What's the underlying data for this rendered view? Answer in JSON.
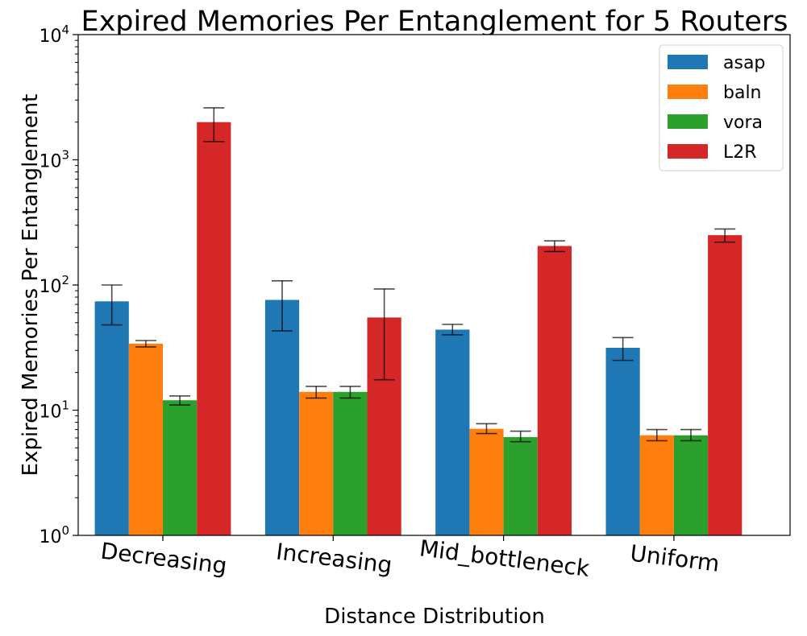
{
  "chart_data": {
    "type": "bar",
    "title": "Expired Memories Per Entanglement for 5 Routers",
    "xlabel": "Distance Distribution",
    "ylabel": "Expired Memories Per Entanglement",
    "yscale": "log",
    "ylim": [
      1,
      10000
    ],
    "yticks": [
      {
        "value": 1,
        "base": "10",
        "exp": "0"
      },
      {
        "value": 10,
        "base": "10",
        "exp": "1"
      },
      {
        "value": 100,
        "base": "10",
        "exp": "2"
      },
      {
        "value": 1000,
        "base": "10",
        "exp": "3"
      },
      {
        "value": 10000,
        "base": "10",
        "exp": "4"
      }
    ],
    "categories": [
      "Decreasing",
      "Increasing",
      "Mid_bottleneck",
      "Uniform"
    ],
    "legend_position": "top-right",
    "series": [
      {
        "name": "asap",
        "color": "#1f77b4",
        "values": [
          74,
          76,
          44,
          31.5
        ],
        "err_low": [
          48,
          43,
          40,
          25
        ],
        "err_high": [
          100,
          108,
          48.5,
          38
        ]
      },
      {
        "name": "baln",
        "color": "#ff7f0e",
        "values": [
          34,
          14,
          7.1,
          6.3
        ],
        "err_low": [
          32,
          12.5,
          6.5,
          5.7
        ],
        "err_high": [
          36,
          15.5,
          7.8,
          7.0
        ]
      },
      {
        "name": "vora",
        "color": "#2ca02c",
        "values": [
          12,
          14,
          6.1,
          6.3
        ],
        "err_low": [
          11,
          12.5,
          5.6,
          5.7
        ],
        "err_high": [
          13,
          15.5,
          6.8,
          7.0
        ]
      },
      {
        "name": "L2R",
        "color": "#d62728",
        "values": [
          2000,
          55,
          205,
          250
        ],
        "err_low": [
          1400,
          17.5,
          185,
          220
        ],
        "err_high": [
          2600,
          93,
          225,
          280
        ]
      }
    ]
  }
}
